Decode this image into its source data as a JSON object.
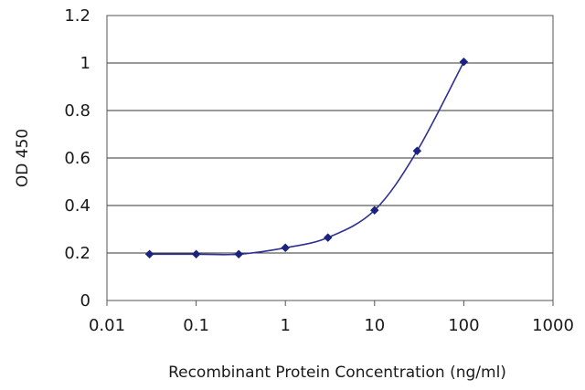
{
  "chart_data": {
    "type": "line",
    "title": "",
    "xlabel": "Recombinant Protein Concentration (ng/ml)",
    "ylabel": "OD 450",
    "x_scale": "log",
    "xlim": [
      0.01,
      1000
    ],
    "ylim": [
      0,
      1.2
    ],
    "x_ticks": [
      "0.01",
      "0.1",
      "1",
      "10",
      "100",
      "1000"
    ],
    "y_ticks": [
      "0",
      "0.2",
      "0.4",
      "0.6",
      "0.8",
      "1",
      "1.2"
    ],
    "grid": "horizontal",
    "legend": "none",
    "series": [
      {
        "color": "#2e3192",
        "marker_color": "#1a237e",
        "x": [
          0.03,
          0.1,
          0.3,
          1,
          3,
          10,
          30,
          100
        ],
        "y": [
          0.195,
          0.195,
          0.195,
          0.222,
          0.265,
          0.38,
          0.63,
          1.005
        ]
      }
    ]
  }
}
